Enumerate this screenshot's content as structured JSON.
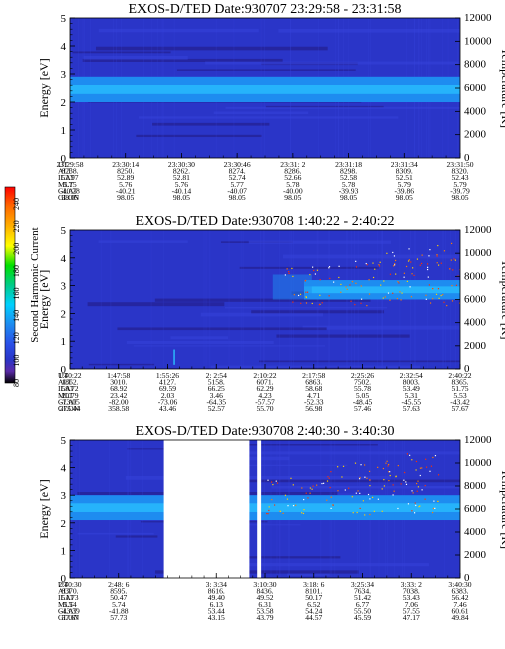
{
  "colors": {
    "background": "#ffffff",
    "panel_base": "#2a35c8",
    "band": "#1e8cf0",
    "band_core": "#2ac0ff",
    "dark_streak": "#24208f"
  },
  "colorbar": {
    "label": "Second Harmonic Current",
    "ticks": [
      "240",
      "220",
      "200",
      "180",
      "160",
      "140",
      "120",
      "100",
      "80"
    ],
    "colors": [
      "#ff0000",
      "#ff6a00",
      "#ffb000",
      "#ffff00",
      "#00e000",
      "#00cc88",
      "#00d0ff",
      "#1e8cf0",
      "#2a50e8",
      "#2a35c8",
      "#5a2aa8",
      "#000000"
    ]
  },
  "chart_data": [
    {
      "type": "heatmap",
      "title": "EXOS-D/TED   Date:930707   23:29:58 - 23:31:58",
      "ylabel": "Energy [eV]",
      "ylabel_right": "Temperature [K]",
      "ylim": [
        0,
        5
      ],
      "yticks": [
        "0",
        "1",
        "2",
        "3",
        "4",
        "5"
      ],
      "ylim_right": [
        0,
        12000
      ],
      "yticks_right": [
        "0",
        "2000",
        "4000",
        "6000",
        "8000",
        "10000",
        "12000"
      ],
      "band_center_ev": 2.45,
      "band_halfwidth_ev": 0.45,
      "data_gap": [],
      "dots": false,
      "info_labels": [
        "UT",
        "ALT",
        "ILAT",
        "MLT",
        "GLAT",
        "GLON"
      ],
      "columns": [
        [
          "23:29:58",
          "8238.",
          "52.97",
          "5.75",
          "-40.28",
          "98.05"
        ],
        [
          "23:30:14",
          "8250.",
          "52.89",
          "5.76",
          "-40.21",
          "98.05"
        ],
        [
          "23:30:30",
          "8262.",
          "52.81",
          "5.76",
          "-40.14",
          "98.05"
        ],
        [
          "23:30:46",
          "8274.",
          "52.74",
          "5.77",
          "-40.07",
          "98.05"
        ],
        [
          "23:31: 2",
          "8286.",
          "52.66",
          "5.78",
          "-40.00",
          "98.05"
        ],
        [
          "23:31:18",
          "8298.",
          "52.58",
          "5.78",
          "-39.93",
          "98.05"
        ],
        [
          "23:31:34",
          "8309.",
          "52.51",
          "5.79",
          "-39.86",
          "98.05"
        ],
        [
          "23:31:50",
          "8320.",
          "52.43",
          "5.79",
          "-39.79",
          "98.05"
        ]
      ]
    },
    {
      "type": "heatmap",
      "title": "EXOS-D/TED   Date:930708   1:40:22 - 2:40:22",
      "ylabel": "Energy [eV]",
      "ylabel_right": "Temperature [K]",
      "ylim": [
        0,
        5
      ],
      "yticks": [
        "0",
        "1",
        "2",
        "3",
        "4",
        "5"
      ],
      "ylim_right": [
        0,
        12000
      ],
      "yticks_right": [
        "0",
        "2000",
        "4000",
        "6000",
        "8000",
        "10000",
        "12000"
      ],
      "band_center_ev": 2.85,
      "band_halfwidth_ev": 0.35,
      "band_start_fraction": 0.6,
      "data_gap": [],
      "dots": true,
      "info_labels": [
        "UT",
        "ALT",
        "ILAT",
        "MLT",
        "GLAT",
        "GLON"
      ],
      "columns": [
        [
          "1:40:22",
          "1862.",
          "58.72",
          "20.79",
          "-73.05",
          "275.44"
        ],
        [
          "1:47:58",
          "3010.",
          "68.92",
          "23.42",
          "-82.00",
          "358.58"
        ],
        [
          "1:55:26",
          "4127.",
          "69.59",
          "2.03",
          "-73.06",
          "43.46"
        ],
        [
          "2: 2:54",
          "5158.",
          "66.25",
          "3.46",
          "-64.35",
          "52.57"
        ],
        [
          "2:10:22",
          "6071.",
          "62.29",
          "4.23",
          "-57.57",
          "55.70"
        ],
        [
          "2:17:58",
          "6863.",
          "58.68",
          "4.71",
          "-52.33",
          "56.98"
        ],
        [
          "2:25:26",
          "7502.",
          "55.78",
          "5.05",
          "-48.45",
          "57.46"
        ],
        [
          "2:32:54",
          "8003.",
          "53.49",
          "5.31",
          "-45.55",
          "57.63"
        ],
        [
          "2:40:22",
          "8365.",
          "51.75",
          "5.53",
          "-43.42",
          "57.67"
        ]
      ]
    },
    {
      "type": "heatmap",
      "title": "EXOS-D/TED   Date:930708   2:40:30 - 3:40:30",
      "ylabel": "Energy [eV]",
      "ylabel_right": "Temperature [K]",
      "ylim": [
        0,
        5
      ],
      "yticks": [
        "0",
        "1",
        "2",
        "3",
        "4",
        "5"
      ],
      "ylim_right": [
        0,
        12000
      ],
      "yticks_right": [
        "0",
        "2000",
        "4000",
        "6000",
        "8000",
        "10000",
        "12000"
      ],
      "band_center_ev": 2.55,
      "band_halfwidth_ev": 0.45,
      "data_gap": [
        [
          0.24,
          0.46
        ],
        [
          0.48,
          0.49
        ]
      ],
      "dots": true,
      "info_labels": [
        "UT",
        "ALT",
        "ILAT",
        "MLT",
        "GLAT",
        "GLON"
      ],
      "columns": [
        [
          "2:40:30",
          "8370.",
          "51.73",
          "5.54",
          "-43.39",
          "57.67"
        ],
        [
          "2:48: 6",
          "8595.",
          "50.47",
          "5.74",
          "-41.88",
          "57.73"
        ],
        [
          "",
          "",
          "",
          "",
          "",
          ""
        ],
        [
          "3: 3:34",
          "8616.",
          "49.40",
          "6.13",
          "53.44",
          "43.15"
        ],
        [
          "3:10:30",
          "8436.",
          "49.52",
          "6.31",
          "53.58",
          "43.79"
        ],
        [
          "3:18: 6",
          "8101.",
          "50.17",
          "6.52",
          "54.24",
          "44.57"
        ],
        [
          "3:25:34",
          "7634.",
          "51.42",
          "6.77",
          "55.50",
          "45.59"
        ],
        [
          "3:33: 2",
          "7038.",
          "53.43",
          "7.06",
          "57.55",
          "47.17"
        ],
        [
          "3:40:30",
          "6383.",
          "56.42",
          "7.46",
          "60.61",
          "49.84"
        ]
      ]
    }
  ]
}
